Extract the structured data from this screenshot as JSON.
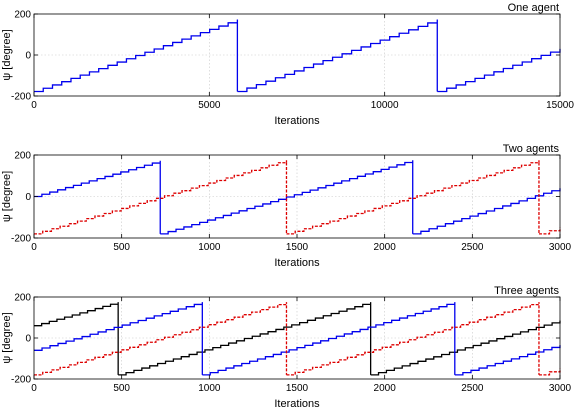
{
  "chart_data": [
    {
      "type": "line",
      "title": "One agent",
      "xlabel": "Iterations",
      "ylabel": "ψ [degree]",
      "xlim": [
        0,
        15000
      ],
      "ylim": [
        -200,
        200
      ],
      "x_ticks": [
        0,
        5000,
        10000,
        15000
      ],
      "y_ticks": [
        -200,
        0,
        200
      ],
      "grid": true,
      "series": [
        {
          "color": "#0000ee",
          "style": "solid",
          "steps": 56,
          "points": [
            [
              0,
              -178
            ],
            [
              5800,
              173
            ],
            [
              5800,
              -178
            ],
            [
              11500,
              173
            ],
            [
              11500,
              -178
            ],
            [
              15000,
              30
            ]
          ]
        }
      ]
    },
    {
      "type": "line",
      "title": "Two agents",
      "xlabel": "Iterations",
      "ylabel": "ψ [degree]",
      "xlim": [
        0,
        3000
      ],
      "ylim": [
        -200,
        200
      ],
      "x_ticks": [
        0,
        500,
        1000,
        1500,
        2000,
        2500,
        3000
      ],
      "y_ticks": [
        -200,
        0,
        200
      ],
      "grid": true,
      "series": [
        {
          "color": "#0000ee",
          "style": "solid",
          "steps": 66,
          "points": [
            [
              0,
              0
            ],
            [
              720,
              172
            ],
            [
              720,
              -180
            ],
            [
              2160,
              175
            ],
            [
              2160,
              -180
            ],
            [
              3000,
              40
            ]
          ]
        },
        {
          "color": "#dd0000",
          "style": "dashed",
          "steps": 60,
          "points": [
            [
              0,
              -180
            ],
            [
              1440,
              175
            ],
            [
              1440,
              -180
            ],
            [
              2880,
              175
            ],
            [
              2880,
              -180
            ],
            [
              3000,
              -150
            ]
          ]
        }
      ]
    },
    {
      "type": "line",
      "title": "Three agents",
      "xlabel": "Iterations",
      "ylabel": "ψ [degree]",
      "xlim": [
        0,
        3000
      ],
      "ylim": [
        -200,
        200
      ],
      "x_ticks": [
        0,
        500,
        1000,
        1500,
        2000,
        2500,
        3000
      ],
      "y_ticks": [
        -200,
        0,
        200
      ],
      "grid": true,
      "series": [
        {
          "color": "#000000",
          "style": "solid",
          "steps": 66,
          "points": [
            [
              0,
              60
            ],
            [
              480,
              175
            ],
            [
              480,
              -180
            ],
            [
              1920,
              175
            ],
            [
              1920,
              -180
            ],
            [
              3000,
              85
            ]
          ]
        },
        {
          "color": "#0000ee",
          "style": "solid",
          "steps": 66,
          "points": [
            [
              0,
              -60
            ],
            [
              960,
              175
            ],
            [
              960,
              -180
            ],
            [
              2400,
              175
            ],
            [
              2400,
              -180
            ],
            [
              3000,
              -35
            ]
          ]
        },
        {
          "color": "#dd0000",
          "style": "dashed",
          "steps": 60,
          "points": [
            [
              0,
              -180
            ],
            [
              1440,
              175
            ],
            [
              1440,
              -180
            ],
            [
              2880,
              175
            ],
            [
              2880,
              -180
            ],
            [
              3000,
              -150
            ]
          ]
        }
      ]
    }
  ]
}
